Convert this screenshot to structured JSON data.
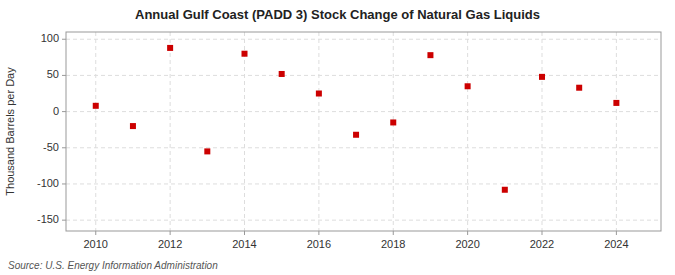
{
  "chart_data": {
    "type": "scatter",
    "title": "Annual Gulf Coast (PADD 3) Stock Change of Natural Gas Liquids",
    "y_label": "Thousand Barrels per Day",
    "annotations": [
      "Source: U.S. Energy Information Administration"
    ],
    "x": [
      2010,
      2011,
      2012,
      2013,
      2014,
      2015,
      2016,
      2017,
      2018,
      2019,
      2020,
      2021,
      2022,
      2023,
      2024
    ],
    "values": [
      8,
      -20,
      88,
      -55,
      80,
      52,
      25,
      -32,
      -15,
      78,
      35,
      -108,
      48,
      33,
      12
    ],
    "color": "#CC0000",
    "marker": "square",
    "xlim": [
      2009.2,
      2025.2
    ],
    "xticks": [
      2010,
      2012,
      2014,
      2016,
      2018,
      2020,
      2022,
      2024
    ],
    "ylim": [
      -165,
      110
    ],
    "yticks": [
      -150,
      -100,
      -50,
      0,
      50,
      100
    ],
    "grid": true
  }
}
